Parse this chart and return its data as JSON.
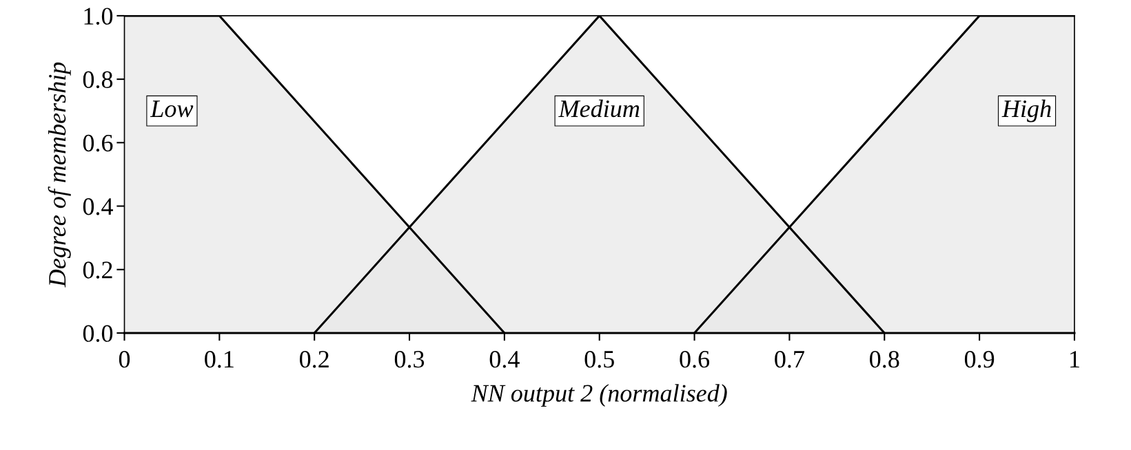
{
  "chart_data": {
    "type": "area",
    "xlabel": "NN output 2 (normalised)",
    "ylabel": "Degree of membership",
    "series": [
      {
        "name": "Low",
        "color": "#e8e8e8",
        "x": [
          0,
          0.1,
          0.4
        ],
        "values": [
          1,
          1,
          0
        ]
      },
      {
        "name": "Medium",
        "color": "#e8e8e8",
        "x": [
          0.2,
          0.5,
          0.8
        ],
        "values": [
          0,
          1,
          0
        ]
      },
      {
        "name": "High",
        "color": "#e8e8e8",
        "x": [
          0.6,
          0.9,
          1
        ],
        "values": [
          0,
          1,
          1
        ]
      }
    ],
    "xlim": [
      0,
      1
    ],
    "ylim": [
      0,
      1
    ],
    "xticks": [
      {
        "value": 0,
        "label": "0"
      },
      0.1,
      0.2,
      0.3,
      0.4,
      0.5,
      0.6,
      0.7,
      0.8,
      0.9,
      {
        "value": 1,
        "label": "1"
      }
    ],
    "yticks": [
      {
        "value": 0,
        "label": "0.0"
      },
      0.2,
      0.4,
      0.6,
      0.8,
      {
        "value": 1,
        "label": "1.0"
      }
    ],
    "grid": false,
    "legend": false,
    "marker": "none",
    "line_style": "solid"
  }
}
